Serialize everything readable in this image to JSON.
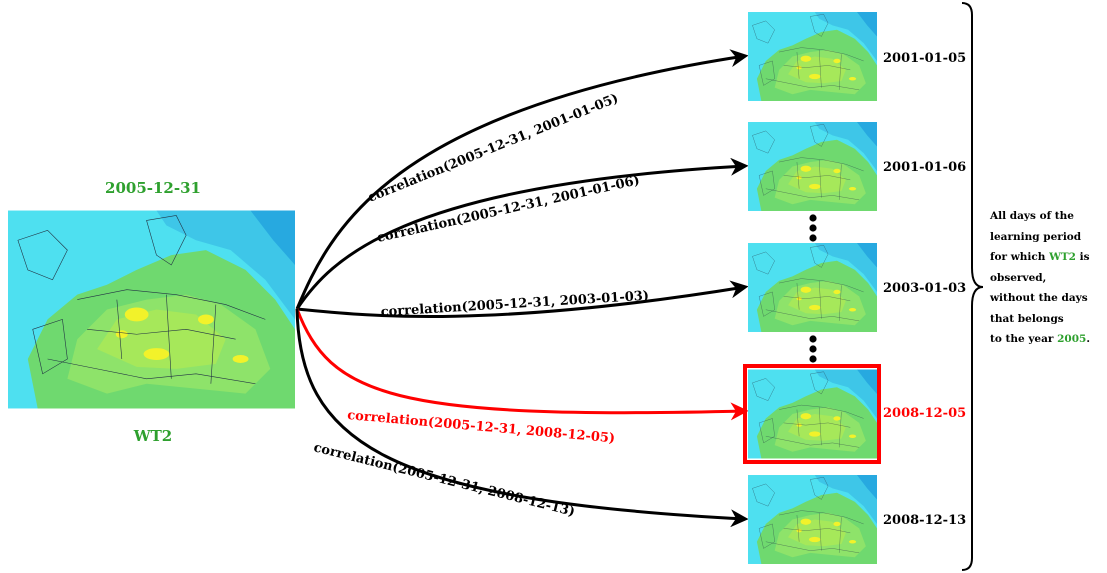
{
  "source": {
    "date": "2005-12-31",
    "label": "WT2"
  },
  "targets": [
    {
      "date": "2001-01-05",
      "edge_label": "correlation(2005-12-31, 2001-01-05)",
      "highlighted": false
    },
    {
      "date": "2001-01-06",
      "edge_label": "correlation(2005-12-31, 2001-01-06)",
      "highlighted": false
    },
    {
      "date": "2003-01-03",
      "edge_label": "correlation(2005-12-31, 2003-01-03)",
      "highlighted": false
    },
    {
      "date": "2008-12-05",
      "edge_label": "correlation(2005-12-31, 2008-12-05)",
      "highlighted": true
    },
    {
      "date": "2008-12-13",
      "edge_label": "correlation(2005-12-31, 2008-12-13)",
      "highlighted": false
    }
  ],
  "side_note": {
    "line1": "All days of the",
    "line2": "learning period",
    "line3_prefix": "for which",
    "line3_highlight": "WT2",
    "line3_suffix": "is",
    "line4": "observed,",
    "line5": "without the days",
    "line6": "that belongs",
    "line7_prefix": "to the year",
    "line7_highlight": "2005",
    "line7_suffix": "."
  },
  "colors": {
    "green_label": "#2ea02e",
    "highlight": "#ff0000",
    "arrow": "#000000",
    "sea": "#4ee0f0",
    "land_outer": "#6fd96f",
    "land_inner": "#a6e85a",
    "hotspot": "#f2f22a"
  }
}
